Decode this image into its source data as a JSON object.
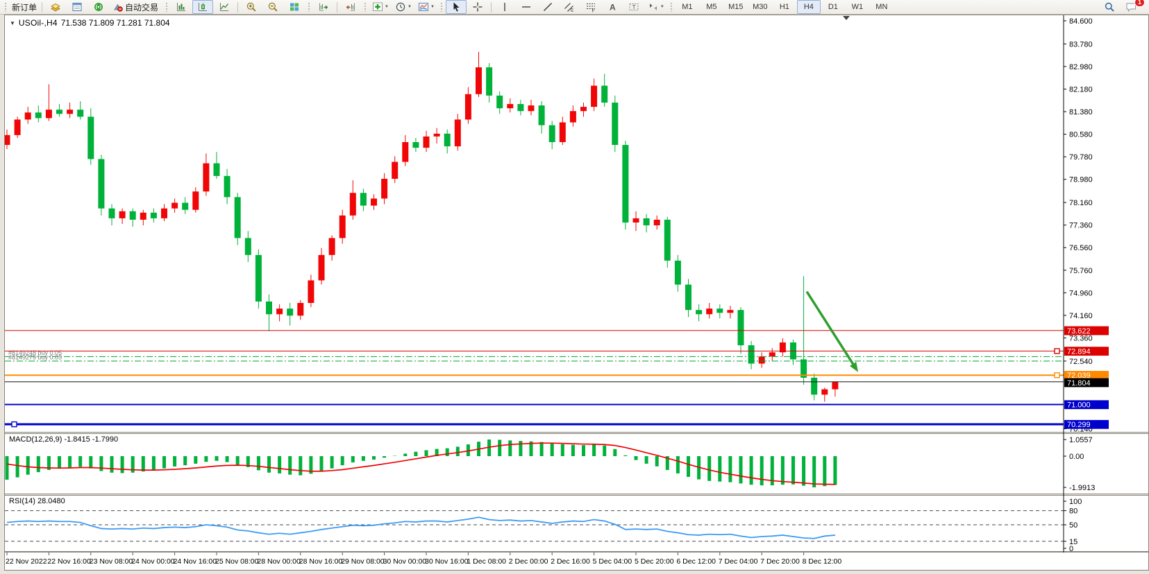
{
  "toolbar": {
    "new_order_label": "新订单",
    "autotrading_label": "自动交易",
    "timeframes": [
      "M1",
      "M5",
      "M15",
      "M30",
      "H1",
      "H4",
      "D1",
      "W1",
      "MN"
    ],
    "active_timeframe": "H4",
    "notification_count": "1"
  },
  "indicators": {
    "macd_label": "MACD(12,26,9) -1.8415 -1.7990",
    "rsi_label": "RSI(14) 28.0480"
  },
  "chart_data": {
    "type": "candlestick",
    "symbol": "USOil-,H4",
    "ohlc_text": "71.538 71.809 71.281 71.804",
    "colors": {
      "up": "#f00606",
      "down": "#00b13a",
      "bid_line": "#111111",
      "position_line": "#00a32e",
      "rsi_line": "#3d9bf5",
      "macd_hist": "#00b13a",
      "macd_signal": "#f00000"
    },
    "main_ylim": [
      70.03,
      84.821
    ],
    "y_ticks": [
      {
        "v": 84.6,
        "label": "84.600"
      },
      {
        "v": 83.78,
        "label": "83.780"
      },
      {
        "v": 82.98,
        "label": "82.980"
      },
      {
        "v": 82.18,
        "label": "82.180"
      },
      {
        "v": 81.38,
        "label": "81.380"
      },
      {
        "v": 80.58,
        "label": "80.580"
      },
      {
        "v": 79.78,
        "label": "79.780"
      },
      {
        "v": 78.98,
        "label": "78.980"
      },
      {
        "v": 78.16,
        "label": "78.160"
      },
      {
        "v": 77.36,
        "label": "77.360"
      },
      {
        "v": 76.56,
        "label": "76.560"
      },
      {
        "v": 75.76,
        "label": "75.760"
      },
      {
        "v": 74.96,
        "label": "74.960"
      },
      {
        "v": 74.16,
        "label": "74.160"
      },
      {
        "v": 73.36,
        "label": "73.360"
      },
      {
        "v": 72.54,
        "label": "72.540"
      },
      {
        "v": 70.14,
        "label": "70.140"
      }
    ],
    "price_lines": [
      {
        "price": 73.622,
        "label": "73.622",
        "color": "#dd0000",
        "width": 1
      },
      {
        "price": 72.894,
        "label": "72.894",
        "color": "#dd0000",
        "width": 1,
        "handle": "right"
      },
      {
        "price": 72.039,
        "label": "72.039",
        "color": "#ff8a00",
        "width": 2,
        "handle": "right"
      },
      {
        "price": 71.0,
        "label": "71.000",
        "color": "#0000cc",
        "width": 2
      },
      {
        "price": 70.299,
        "label": "70.299",
        "color": "#0000cc",
        "width": 3,
        "handle": "left"
      }
    ],
    "bid_line": {
      "price": 71.804,
      "label": "71.804"
    },
    "positions": [
      {
        "ticket_label": "#8149248 buy 0.05",
        "price": 72.7
      },
      {
        "ticket_label": "#8149279 buy 0.05",
        "price": 72.54
      }
    ],
    "arrow_annotation": {
      "bar_from": 76.3,
      "price_from": 75.0,
      "bar_to": 81.2,
      "price_to": 72.15,
      "color": "#2f9e2f"
    },
    "bars_per_label": 4,
    "time_labels": [
      "22 Nov 2022",
      "22 Nov 16:00",
      "23 Nov 08:00",
      "24 Nov 00:00",
      "24 Nov 16:00",
      "25 Nov 08:00",
      "28 Nov 00:00",
      "28 Nov 16:00",
      "29 Nov 08:00",
      "30 Nov 00:00",
      "30 Nov 16:00",
      "1 Dec 08:00",
      "2 Dec 00:00",
      "2 Dec 16:00",
      "5 Dec 04:00",
      "5 Dec 20:00",
      "6 Dec 12:00",
      "7 Dec 04:00",
      "7 Dec 20:00",
      "8 Dec 12:00"
    ],
    "candles": [
      [
        80.2,
        80.75,
        80.05,
        80.55
      ],
      [
        80.55,
        81.2,
        80.45,
        81.1
      ],
      [
        81.1,
        81.55,
        80.95,
        81.35
      ],
      [
        81.35,
        81.6,
        81.0,
        81.15
      ],
      [
        81.15,
        82.35,
        81.05,
        81.45
      ],
      [
        81.45,
        81.65,
        81.2,
        81.3
      ],
      [
        81.3,
        81.7,
        81.15,
        81.45
      ],
      [
        81.45,
        81.75,
        81.1,
        81.2
      ],
      [
        81.2,
        81.5,
        79.5,
        79.7
      ],
      [
        79.7,
        79.85,
        77.7,
        77.95
      ],
      [
        77.95,
        78.1,
        77.35,
        77.6
      ],
      [
        77.6,
        77.95,
        77.4,
        77.85
      ],
      [
        77.85,
        77.95,
        77.3,
        77.55
      ],
      [
        77.55,
        77.9,
        77.35,
        77.8
      ],
      [
        77.8,
        77.95,
        77.45,
        77.6
      ],
      [
        77.6,
        78.1,
        77.5,
        77.95
      ],
      [
        77.95,
        78.3,
        77.8,
        78.15
      ],
      [
        78.15,
        78.35,
        77.75,
        77.9
      ],
      [
        77.9,
        78.7,
        77.8,
        78.55
      ],
      [
        78.55,
        79.9,
        78.4,
        79.55
      ],
      [
        79.55,
        79.95,
        79.0,
        79.1
      ],
      [
        79.1,
        79.35,
        78.1,
        78.35
      ],
      [
        78.35,
        78.5,
        76.65,
        76.9
      ],
      [
        76.9,
        77.15,
        76.05,
        76.3
      ],
      [
        76.3,
        76.5,
        74.4,
        74.65
      ],
      [
        74.65,
        74.9,
        73.6,
        74.2
      ],
      [
        74.2,
        74.55,
        73.95,
        74.4
      ],
      [
        74.4,
        74.6,
        73.8,
        74.15
      ],
      [
        74.15,
        74.7,
        74.0,
        74.6
      ],
      [
        74.6,
        75.6,
        74.45,
        75.4
      ],
      [
        75.4,
        76.55,
        75.25,
        76.3
      ],
      [
        76.3,
        77.0,
        76.1,
        76.9
      ],
      [
        76.9,
        77.9,
        76.7,
        77.7
      ],
      [
        77.7,
        78.95,
        77.55,
        78.5
      ],
      [
        78.5,
        78.65,
        77.85,
        78.05
      ],
      [
        78.05,
        78.45,
        77.9,
        78.3
      ],
      [
        78.3,
        79.2,
        78.1,
        79.0
      ],
      [
        79.0,
        79.8,
        78.85,
        79.6
      ],
      [
        79.6,
        80.55,
        79.45,
        80.3
      ],
      [
        80.3,
        80.45,
        79.95,
        80.1
      ],
      [
        80.1,
        80.7,
        79.95,
        80.5
      ],
      [
        80.5,
        80.8,
        80.25,
        80.6
      ],
      [
        80.6,
        80.75,
        79.9,
        80.15
      ],
      [
        80.15,
        81.3,
        80.0,
        81.1
      ],
      [
        81.1,
        82.25,
        80.95,
        82.0
      ],
      [
        82.0,
        83.5,
        81.9,
        82.95
      ],
      [
        82.95,
        83.1,
        81.7,
        81.95
      ],
      [
        81.95,
        82.1,
        81.3,
        81.5
      ],
      [
        81.5,
        81.85,
        81.35,
        81.65
      ],
      [
        81.65,
        81.8,
        81.25,
        81.4
      ],
      [
        81.4,
        81.8,
        81.25,
        81.6
      ],
      [
        81.6,
        81.75,
        80.6,
        80.9
      ],
      [
        80.9,
        81.05,
        80.05,
        80.3
      ],
      [
        80.3,
        81.2,
        80.2,
        81.0
      ],
      [
        81.0,
        81.6,
        80.85,
        81.4
      ],
      [
        81.4,
        81.7,
        81.2,
        81.55
      ],
      [
        81.55,
        82.55,
        81.4,
        82.3
      ],
      [
        82.3,
        82.72,
        81.55,
        81.7
      ],
      [
        81.7,
        81.95,
        79.95,
        80.2
      ],
      [
        80.2,
        80.35,
        77.2,
        77.45
      ],
      [
        77.45,
        77.85,
        77.15,
        77.6
      ],
      [
        77.6,
        77.75,
        77.1,
        77.35
      ],
      [
        77.35,
        77.7,
        77.2,
        77.55
      ],
      [
        77.55,
        77.65,
        75.85,
        76.1
      ],
      [
        76.1,
        76.3,
        75.0,
        75.25
      ],
      [
        75.25,
        75.45,
        74.1,
        74.35
      ],
      [
        74.35,
        74.55,
        73.95,
        74.2
      ],
      [
        74.2,
        74.6,
        74.05,
        74.4
      ],
      [
        74.4,
        74.55,
        74.05,
        74.25
      ],
      [
        74.25,
        74.5,
        74.05,
        74.35
      ],
      [
        74.35,
        74.45,
        72.8,
        73.1
      ],
      [
        73.1,
        73.25,
        72.25,
        72.45
      ],
      [
        72.45,
        72.85,
        72.3,
        72.7
      ],
      [
        72.7,
        73.0,
        72.55,
        72.85
      ],
      [
        72.85,
        73.35,
        72.7,
        73.2
      ],
      [
        73.2,
        73.3,
        72.4,
        72.6
      ],
      [
        72.6,
        75.55,
        71.7,
        71.95
      ],
      [
        71.95,
        72.1,
        71.15,
        71.35
      ],
      [
        71.35,
        71.6,
        71.1,
        71.54
      ],
      [
        71.54,
        71.81,
        71.28,
        71.8
      ]
    ],
    "macd": {
      "ylim": [
        -2.385,
        1.413
      ],
      "axis": [
        {
          "v": 1.0557,
          "label": "1.0557"
        },
        {
          "v": 0,
          "label": "0.00"
        },
        {
          "v": -1.9913,
          "label": "-1.9913"
        }
      ],
      "hist": [
        -1.5,
        -1.35,
        -1.18,
        -1.02,
        -0.88,
        -0.8,
        -0.72,
        -0.68,
        -0.78,
        -0.95,
        -1.05,
        -1.08,
        -1.05,
        -0.98,
        -0.88,
        -0.78,
        -0.66,
        -0.58,
        -0.48,
        -0.36,
        -0.3,
        -0.38,
        -0.55,
        -0.7,
        -0.9,
        -1.05,
        -1.1,
        -1.18,
        -1.22,
        -1.12,
        -0.95,
        -0.78,
        -0.58,
        -0.4,
        -0.3,
        -0.22,
        -0.1,
        0.02,
        0.16,
        0.28,
        0.38,
        0.46,
        0.5,
        0.6,
        0.75,
        0.92,
        1.06,
        1.04,
        1.0,
        0.97,
        0.94,
        0.9,
        0.82,
        0.76,
        0.72,
        0.7,
        0.74,
        0.68,
        0.45,
        0.05,
        -0.25,
        -0.48,
        -0.65,
        -0.88,
        -1.1,
        -1.32,
        -1.48,
        -1.58,
        -1.62,
        -1.66,
        -1.74,
        -1.82,
        -1.86,
        -1.86,
        -1.82,
        -1.8,
        -1.88,
        -1.99,
        -1.91,
        -1.84
      ],
      "signal": [
        -0.5,
        -0.6,
        -0.68,
        -0.73,
        -0.75,
        -0.76,
        -0.75,
        -0.73,
        -0.73,
        -0.76,
        -0.8,
        -0.84,
        -0.87,
        -0.89,
        -0.89,
        -0.87,
        -0.84,
        -0.8,
        -0.75,
        -0.69,
        -0.63,
        -0.59,
        -0.58,
        -0.6,
        -0.65,
        -0.72,
        -0.79,
        -0.86,
        -0.92,
        -0.96,
        -0.96,
        -0.92,
        -0.86,
        -0.77,
        -0.68,
        -0.59,
        -0.49,
        -0.39,
        -0.28,
        -0.17,
        -0.06,
        0.05,
        0.14,
        0.23,
        0.33,
        0.45,
        0.57,
        0.67,
        0.74,
        0.78,
        0.81,
        0.83,
        0.83,
        0.81,
        0.79,
        0.77,
        0.76,
        0.74,
        0.68,
        0.55,
        0.39,
        0.22,
        0.05,
        -0.13,
        -0.32,
        -0.52,
        -0.71,
        -0.88,
        -1.03,
        -1.15,
        -1.27,
        -1.38,
        -1.48,
        -1.56,
        -1.62,
        -1.66,
        -1.71,
        -1.77,
        -1.79,
        -1.8
      ]
    },
    "rsi": {
      "ylim": [
        -5.9,
        111.8
      ],
      "axis": [
        {
          "v": 100,
          "label": "100"
        },
        {
          "v": 80,
          "label": "80"
        },
        {
          "v": 50,
          "label": "50"
        },
        {
          "v": 15,
          "label": "15"
        },
        {
          "v": 0,
          "label": "0"
        }
      ],
      "levels": [
        80,
        50,
        15
      ],
      "values": [
        55,
        57,
        58,
        57,
        58,
        57,
        57,
        55,
        48,
        42,
        41,
        42,
        41,
        43,
        42,
        44,
        45,
        44,
        46,
        50,
        48,
        45,
        39,
        37,
        33,
        30,
        32,
        30,
        33,
        36,
        40,
        43,
        46,
        49,
        48,
        49,
        52,
        54,
        57,
        56,
        58,
        58,
        56,
        59,
        62,
        66,
        61,
        59,
        60,
        58,
        59,
        56,
        53,
        56,
        58,
        57,
        61,
        58,
        51,
        40,
        41,
        40,
        41,
        36,
        33,
        29,
        28,
        30,
        29,
        30,
        26,
        23,
        25,
        26,
        28,
        25,
        22,
        21,
        26,
        28
      ]
    }
  }
}
